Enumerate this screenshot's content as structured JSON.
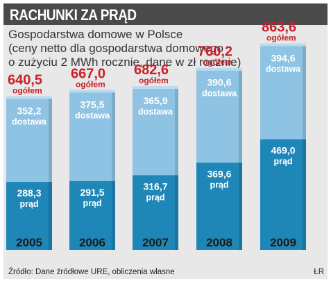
{
  "header": {
    "title": "RACHUNKI ZA PRĄD"
  },
  "subtitle": {
    "line1": "Gospodarstwa domowe w Polsce",
    "line2": "(ceny netto dla gospodarstwa domowego",
    "line3": "o zużyciu 2 MWh rocznie, dane w zł rocznie)"
  },
  "footer": {
    "source": "Źródło: Dane źródłowe URE, obliczenia własne",
    "credit": "ŁR"
  },
  "colors": {
    "header_bg": "#4a4a4a",
    "panel_bg": "#e8e8e8",
    "energy_segment": "#1f86b8",
    "distribution_segment": "#8fc3e3",
    "total_label": "#c8202a",
    "year_label": "#1a1a1a"
  },
  "chart_data": {
    "type": "bar",
    "stacked": true,
    "categories": [
      "2005",
      "2006",
      "2007",
      "2008",
      "2009"
    ],
    "series": [
      {
        "name": "prąd",
        "values": [
          288.3,
          291.5,
          316.7,
          369.6,
          469.0
        ],
        "labels": [
          "288,3",
          "291,5",
          "316,7",
          "369,6",
          "469,0"
        ]
      },
      {
        "name": "dostawa",
        "values": [
          352.2,
          375.5,
          365.9,
          390.6,
          394.6
        ],
        "labels": [
          "352,2",
          "375,5",
          "365,9",
          "390,6",
          "394,6"
        ]
      }
    ],
    "totals": [
      640.5,
      667.0,
      682.6,
      760.2,
      863.6
    ],
    "total_labels": [
      "640,5",
      "667,0",
      "682,6",
      "760,2",
      "863,6"
    ],
    "total_caption": "ogółem",
    "title": "",
    "xlabel": "",
    "ylabel": "",
    "grid": false,
    "legend": "none"
  }
}
